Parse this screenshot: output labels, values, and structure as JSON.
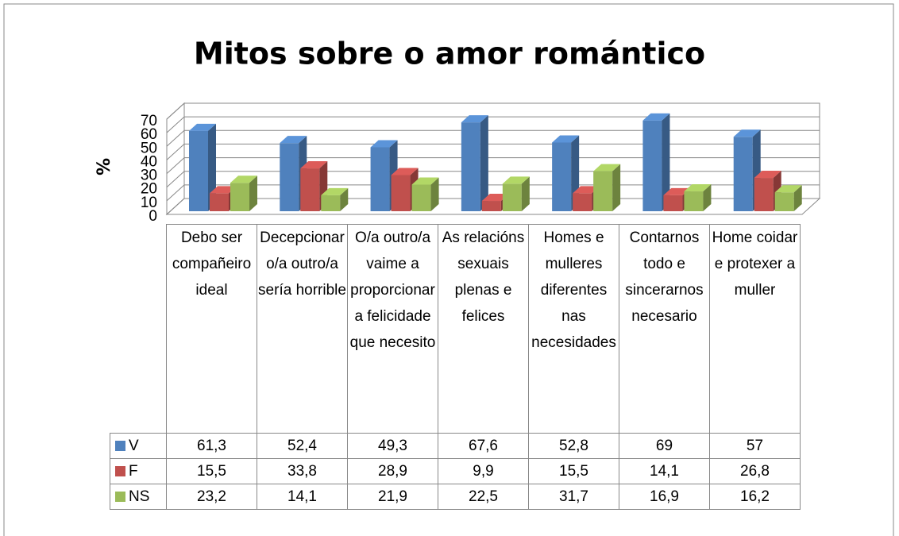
{
  "chart_data": {
    "type": "bar3d",
    "title": "Mitos sobre o amor romántico",
    "y_label": "%",
    "categories": [
      "Debo ser compañeiro ideal",
      "Decepcionar o/a outro/a sería horrible",
      "O/a outro/a vaime a proporcionar a felicidade que necesito",
      "As relacións sexuais plenas e felices",
      "Homes e mulleres diferentes nas necesidades",
      "Contarnos todo e sincerarnos necesario",
      "Home coidar e protexer a muller"
    ],
    "series": [
      {
        "name": "V",
        "color": "#4f81bd",
        "values": [
          61.3,
          52.4,
          49.3,
          67.6,
          52.8,
          69,
          57
        ],
        "value_labels": [
          "61,3",
          "52,4",
          "49,3",
          "67,6",
          "52,8",
          "69",
          "57"
        ]
      },
      {
        "name": "F",
        "color": "#c0504d",
        "values": [
          15.5,
          33.8,
          28.9,
          9.9,
          15.5,
          14.1,
          26.8
        ],
        "value_labels": [
          "15,5",
          "33,8",
          "28,9",
          "9,9",
          "15,5",
          "14,1",
          "26,8"
        ]
      },
      {
        "name": "NS",
        "color": "#9bbb59",
        "values": [
          23.2,
          14.1,
          21.9,
          22.5,
          31.7,
          16.9,
          16.2
        ],
        "value_labels": [
          "23,2",
          "14,1",
          "21,9",
          "22,5",
          "31,7",
          "16,9",
          "16,2"
        ]
      }
    ],
    "ylim": [
      0,
      70
    ],
    "yticks": [
      0,
      10,
      20,
      30,
      40,
      50,
      60,
      70
    ],
    "grid": true
  }
}
